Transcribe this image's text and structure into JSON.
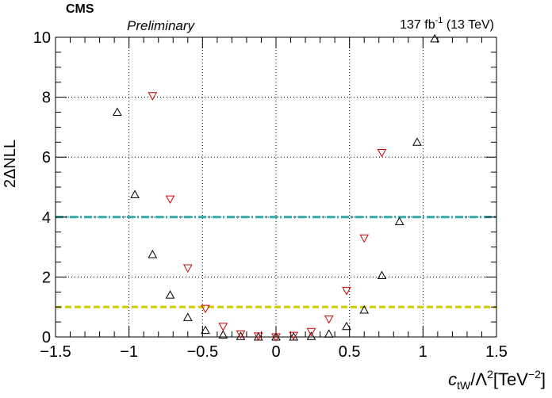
{
  "header": {
    "cms": "CMS",
    "preliminary": "Preliminary",
    "lumi_value": "137 fb",
    "lumi_exp": "-1",
    "lumi_energy": " (13 TeV)"
  },
  "axes": {
    "y_label": "2ΔNLL",
    "x_label_c": "c",
    "x_label_sub": "tW",
    "x_label_mid": "/Λ",
    "x_label_sup1": "2",
    "x_label_unit": "[TeV",
    "x_label_sup2": "−2",
    "x_label_end": "]"
  },
  "colors": {
    "observed": "#000000",
    "expected": "#cc0000",
    "line_68": "#cccc00",
    "line_95": "#33aaaa"
  },
  "chart_data": {
    "type": "scatter",
    "xlim": [
      -1.5,
      1.5
    ],
    "ylim": [
      0,
      10
    ],
    "xticks": [
      -1.5,
      -1,
      -0.5,
      0,
      0.5,
      1,
      1.5
    ],
    "xtick_labels": [
      "−1.5",
      "−1",
      "−0.5",
      "0",
      "0.5",
      "1",
      "1.5"
    ],
    "yticks": [
      0,
      2,
      4,
      6,
      8,
      10
    ],
    "ytick_labels": [
      "0",
      "2",
      "4",
      "6",
      "8",
      "10"
    ],
    "grid": true,
    "series": [
      {
        "marker": "triangle-up",
        "color": "#000000",
        "x": [
          -1.08,
          -0.96,
          -0.84,
          -0.72,
          -0.6,
          -0.48,
          -0.36,
          -0.24,
          -0.12,
          0.0,
          0.12,
          0.24,
          0.36,
          0.48,
          0.6,
          0.72,
          0.84,
          0.96,
          1.08
        ],
        "y": [
          7.5,
          4.75,
          2.75,
          1.4,
          0.65,
          0.22,
          0.07,
          0.02,
          0.0,
          0.0,
          0.0,
          0.02,
          0.1,
          0.35,
          0.9,
          2.05,
          3.85,
          6.5,
          9.95
        ]
      },
      {
        "marker": "triangle-down",
        "color": "#cc0000",
        "x": [
          -0.84,
          -0.72,
          -0.6,
          -0.48,
          -0.36,
          -0.24,
          -0.12,
          0.0,
          0.12,
          0.24,
          0.36,
          0.48,
          0.6,
          0.72
        ],
        "y": [
          8.05,
          4.6,
          2.3,
          0.95,
          0.35,
          0.1,
          0.03,
          0.0,
          0.05,
          0.18,
          0.6,
          1.55,
          3.3,
          6.15
        ]
      }
    ],
    "hlines": [
      {
        "y": 1,
        "style": "dashed",
        "color": "#cccc00"
      },
      {
        "y": 4,
        "style": "dash-dot",
        "color": "#33aaaa"
      }
    ]
  }
}
